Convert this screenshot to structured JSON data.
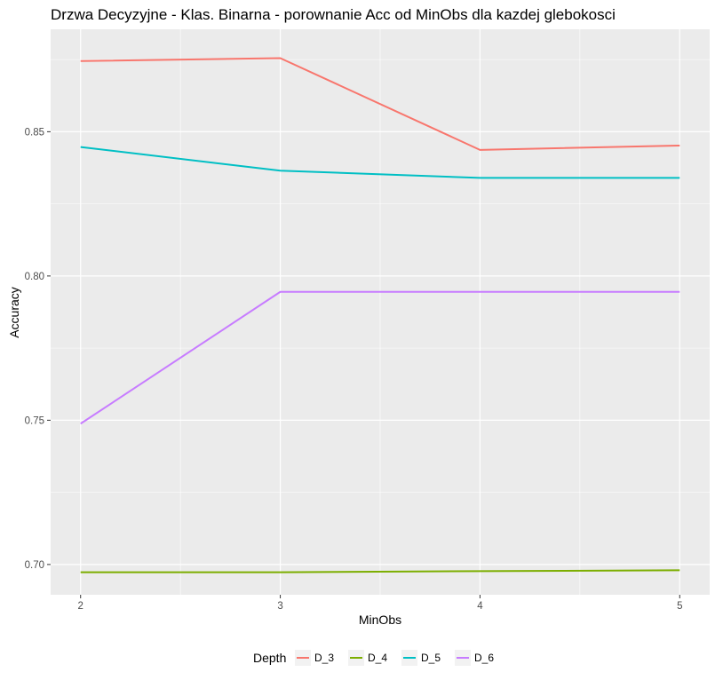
{
  "chart_data": {
    "type": "line",
    "title": "Drzwa Decyzyjne - Klas. Binarna - porownanie Acc od MinObs dla kazdej glebokosci",
    "xlabel": "MinObs",
    "ylabel": "Accuracy",
    "x": [
      2,
      3,
      4,
      5
    ],
    "xlim": [
      1.85,
      5.15
    ],
    "ylim": [
      0.6895,
      0.8855
    ],
    "x_ticks": [
      2,
      3,
      4,
      5
    ],
    "x_tick_labels": [
      "2",
      "3",
      "4",
      "5"
    ],
    "y_ticks": [
      0.7,
      0.75,
      0.8,
      0.85
    ],
    "y_tick_labels": [
      "0.70",
      "0.75",
      "0.80",
      "0.85"
    ],
    "grid": true,
    "legend_title": "Depth",
    "legend_position": "bottom",
    "series": [
      {
        "name": "D_3",
        "color": "#F8766D",
        "values": [
          0.8745,
          0.8755,
          0.8437,
          0.8452
        ]
      },
      {
        "name": "D_4",
        "color": "#7CAE00",
        "values": [
          0.6973,
          0.6973,
          0.6977,
          0.698
        ]
      },
      {
        "name": "D_5",
        "color": "#00BFC4",
        "values": [
          0.8447,
          0.8365,
          0.834,
          0.834
        ]
      },
      {
        "name": "D_6",
        "color": "#C77CFF",
        "values": [
          0.7488,
          0.7945,
          0.7945,
          0.7945
        ]
      }
    ]
  }
}
